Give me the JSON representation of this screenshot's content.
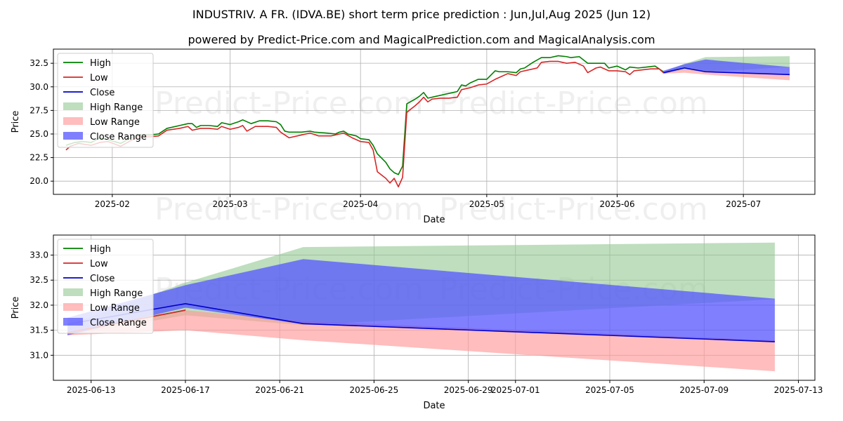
{
  "title_line1": "INDUSTRIV. A FR. (IDVA.BE) short term price prediction : Jun,Jul,Aug 2025 (Jun 12)",
  "title_line2": "powered by Predict-Price.com and MagicalPrediction.com and MagicalAnalysis.com",
  "watermark_text": "Predict-Price.com",
  "colors": {
    "high": "#008000",
    "low": "#d62728",
    "close": "#0000cc",
    "high_range": "#92c892",
    "low_range": "#ff9999",
    "close_range": "#5555ff"
  },
  "chart_data": [
    {
      "type": "line",
      "name": "history",
      "xlabel": "Date",
      "ylabel": "Price",
      "x_domain": [
        "2025-01-18",
        "2025-07-18"
      ],
      "ylim": [
        18.6,
        34.0
      ],
      "yticks": [
        20.0,
        22.5,
        25.0,
        27.5,
        30.0,
        32.5
      ],
      "ytick_labels": [
        "20.0",
        "22.5",
        "25.0",
        "27.5",
        "30.0",
        "32.5"
      ],
      "xticks": [
        "2025-02-01",
        "2025-03-01",
        "2025-04-01",
        "2025-05-01",
        "2025-06-01",
        "2025-07-01"
      ],
      "xtick_labels": [
        "2025-02",
        "2025-03",
        "2025-04",
        "2025-05",
        "2025-06",
        "2025-07"
      ],
      "legend": [
        "High",
        "Low",
        "Close",
        "High Range",
        "Low Range",
        "Close Range"
      ],
      "legend_position": "top-left",
      "series": [
        {
          "name": "High",
          "points": [
            [
              "2025-01-21",
              23.8
            ],
            [
              "2025-01-23",
              24.1
            ],
            [
              "2025-01-25",
              24.2
            ],
            [
              "2025-01-27",
              24.1
            ],
            [
              "2025-01-29",
              24.6
            ],
            [
              "2025-01-31",
              24.4
            ],
            [
              "2025-02-03",
              24.0
            ],
            [
              "2025-02-05",
              24.5
            ],
            [
              "2025-02-07",
              24.9
            ],
            [
              "2025-02-10",
              24.9
            ],
            [
              "2025-02-12",
              25.0
            ],
            [
              "2025-02-14",
              25.6
            ],
            [
              "2025-02-17",
              25.9
            ],
            [
              "2025-02-19",
              26.1
            ],
            [
              "2025-02-20",
              26.1
            ],
            [
              "2025-02-21",
              25.7
            ],
            [
              "2025-02-22",
              25.9
            ],
            [
              "2025-02-24",
              25.9
            ],
            [
              "2025-02-26",
              25.8
            ],
            [
              "2025-02-27",
              26.2
            ],
            [
              "2025-03-01",
              26.0
            ],
            [
              "2025-03-03",
              26.3
            ],
            [
              "2025-03-04",
              26.5
            ],
            [
              "2025-03-06",
              26.1
            ],
            [
              "2025-03-08",
              26.4
            ],
            [
              "2025-03-10",
              26.4
            ],
            [
              "2025-03-12",
              26.3
            ],
            [
              "2025-03-13",
              26.0
            ],
            [
              "2025-03-14",
              25.3
            ],
            [
              "2025-03-15",
              25.2
            ],
            [
              "2025-03-18",
              25.2
            ],
            [
              "2025-03-20",
              25.3
            ],
            [
              "2025-03-21",
              25.2
            ],
            [
              "2025-03-24",
              25.1
            ],
            [
              "2025-03-26",
              25.0
            ],
            [
              "2025-03-27",
              25.2
            ],
            [
              "2025-03-28",
              25.3
            ],
            [
              "2025-03-29",
              25.0
            ],
            [
              "2025-03-31",
              24.8
            ],
            [
              "2025-04-01",
              24.5
            ],
            [
              "2025-04-03",
              24.4
            ],
            [
              "2025-04-04",
              23.8
            ],
            [
              "2025-04-05",
              22.9
            ],
            [
              "2025-04-07",
              22.0
            ],
            [
              "2025-04-08",
              21.3
            ],
            [
              "2025-04-09",
              20.9
            ],
            [
              "2025-04-10",
              20.7
            ],
            [
              "2025-04-11",
              21.6
            ],
            [
              "2025-04-12",
              28.2
            ],
            [
              "2025-04-14",
              28.7
            ],
            [
              "2025-04-15",
              29.0
            ],
            [
              "2025-04-16",
              29.4
            ],
            [
              "2025-04-17",
              28.8
            ],
            [
              "2025-04-19",
              29.0
            ],
            [
              "2025-04-21",
              29.2
            ],
            [
              "2025-04-23",
              29.4
            ],
            [
              "2025-04-24",
              29.5
            ],
            [
              "2025-04-25",
              30.2
            ],
            [
              "2025-04-26",
              30.1
            ],
            [
              "2025-04-27",
              30.4
            ],
            [
              "2025-04-29",
              30.8
            ],
            [
              "2025-05-01",
              30.8
            ],
            [
              "2025-05-03",
              31.7
            ],
            [
              "2025-05-04",
              31.6
            ],
            [
              "2025-05-06",
              31.6
            ],
            [
              "2025-05-08",
              31.5
            ],
            [
              "2025-05-09",
              31.9
            ],
            [
              "2025-05-10",
              32.0
            ],
            [
              "2025-05-12",
              32.6
            ],
            [
              "2025-05-14",
              33.1
            ],
            [
              "2025-05-16",
              33.1
            ],
            [
              "2025-05-18",
              33.3
            ],
            [
              "2025-05-20",
              33.2
            ],
            [
              "2025-05-21",
              33.1
            ],
            [
              "2025-05-23",
              33.2
            ],
            [
              "2025-05-25",
              32.5
            ],
            [
              "2025-05-27",
              32.5
            ],
            [
              "2025-05-29",
              32.5
            ],
            [
              "2025-05-30",
              32.0
            ],
            [
              "2025-06-01",
              32.2
            ],
            [
              "2025-06-02",
              32.0
            ],
            [
              "2025-06-03",
              31.8
            ],
            [
              "2025-06-04",
              32.1
            ],
            [
              "2025-06-06",
              32.0
            ],
            [
              "2025-06-08",
              32.1
            ],
            [
              "2025-06-10",
              32.2
            ],
            [
              "2025-06-12",
              31.6
            ]
          ]
        },
        {
          "name": "Low",
          "points": [
            [
              "2025-01-21",
              23.3
            ],
            [
              "2025-01-22",
              23.7
            ],
            [
              "2025-01-24",
              24.0
            ],
            [
              "2025-01-27",
              23.8
            ],
            [
              "2025-01-29",
              24.1
            ],
            [
              "2025-01-31",
              24.2
            ],
            [
              "2025-02-03",
              23.7
            ],
            [
              "2025-02-05",
              24.2
            ],
            [
              "2025-02-07",
              24.7
            ],
            [
              "2025-02-10",
              24.7
            ],
            [
              "2025-02-12",
              24.8
            ],
            [
              "2025-02-14",
              25.4
            ],
            [
              "2025-02-17",
              25.6
            ],
            [
              "2025-02-19",
              25.8
            ],
            [
              "2025-02-20",
              25.4
            ],
            [
              "2025-02-22",
              25.6
            ],
            [
              "2025-02-24",
              25.6
            ],
            [
              "2025-02-26",
              25.5
            ],
            [
              "2025-02-27",
              25.8
            ],
            [
              "2025-03-01",
              25.5
            ],
            [
              "2025-03-03",
              25.7
            ],
            [
              "2025-03-04",
              25.9
            ],
            [
              "2025-03-05",
              25.3
            ],
            [
              "2025-03-07",
              25.8
            ],
            [
              "2025-03-10",
              25.8
            ],
            [
              "2025-03-12",
              25.7
            ],
            [
              "2025-03-13",
              25.2
            ],
            [
              "2025-03-15",
              24.6
            ],
            [
              "2025-03-18",
              24.9
            ],
            [
              "2025-03-20",
              25.1
            ],
            [
              "2025-03-22",
              24.8
            ],
            [
              "2025-03-25",
              24.8
            ],
            [
              "2025-03-27",
              25.0
            ],
            [
              "2025-03-28",
              25.1
            ],
            [
              "2025-03-30",
              24.6
            ],
            [
              "2025-04-01",
              24.2
            ],
            [
              "2025-04-03",
              24.1
            ],
            [
              "2025-04-04",
              23.3
            ],
            [
              "2025-04-05",
              21.0
            ],
            [
              "2025-04-07",
              20.3
            ],
            [
              "2025-04-08",
              19.8
            ],
            [
              "2025-04-09",
              20.3
            ],
            [
              "2025-04-10",
              19.4
            ],
            [
              "2025-04-11",
              20.4
            ],
            [
              "2025-04-12",
              27.3
            ],
            [
              "2025-04-14",
              28.0
            ],
            [
              "2025-04-15",
              28.4
            ],
            [
              "2025-04-16",
              28.9
            ],
            [
              "2025-04-17",
              28.4
            ],
            [
              "2025-04-18",
              28.7
            ],
            [
              "2025-04-20",
              28.8
            ],
            [
              "2025-04-22",
              28.8
            ],
            [
              "2025-04-24",
              28.9
            ],
            [
              "2025-04-25",
              29.7
            ],
            [
              "2025-04-27",
              29.9
            ],
            [
              "2025-04-29",
              30.2
            ],
            [
              "2025-05-01",
              30.3
            ],
            [
              "2025-05-03",
              30.8
            ],
            [
              "2025-05-05",
              31.2
            ],
            [
              "2025-05-06",
              31.4
            ],
            [
              "2025-05-08",
              31.2
            ],
            [
              "2025-05-09",
              31.6
            ],
            [
              "2025-05-11",
              31.8
            ],
            [
              "2025-05-13",
              32.0
            ],
            [
              "2025-05-14",
              32.6
            ],
            [
              "2025-05-16",
              32.7
            ],
            [
              "2025-05-18",
              32.7
            ],
            [
              "2025-05-20",
              32.5
            ],
            [
              "2025-05-22",
              32.6
            ],
            [
              "2025-05-24",
              32.2
            ],
            [
              "2025-05-25",
              31.5
            ],
            [
              "2025-05-27",
              32.0
            ],
            [
              "2025-05-28",
              32.1
            ],
            [
              "2025-05-30",
              31.7
            ],
            [
              "2025-06-01",
              31.7
            ],
            [
              "2025-06-03",
              31.6
            ],
            [
              "2025-06-04",
              31.3
            ],
            [
              "2025-06-05",
              31.7
            ],
            [
              "2025-06-07",
              31.8
            ],
            [
              "2025-06-09",
              31.9
            ],
            [
              "2025-06-11",
              31.9
            ],
            [
              "2025-06-12",
              31.5
            ]
          ]
        },
        {
          "name": "Close",
          "points": [
            [
              "2025-06-12",
              31.5
            ],
            [
              "2025-06-17",
              32.0
            ],
            [
              "2025-06-22",
              31.6
            ],
            [
              "2025-07-12",
              31.3
            ]
          ]
        }
      ],
      "ranges": [
        {
          "name": "High Range",
          "points": [
            [
              "2025-06-12",
              31.6,
              31.4
            ],
            [
              "2025-06-17",
              32.45,
              31.8
            ],
            [
              "2025-06-22",
              33.15,
              31.6
            ],
            [
              "2025-07-12",
              33.25,
              32.1
            ]
          ]
        },
        {
          "name": "Low Range",
          "points": [
            [
              "2025-06-12",
              31.55,
              31.4
            ],
            [
              "2025-06-17",
              31.85,
              31.5
            ],
            [
              "2025-06-22",
              31.65,
              31.3
            ],
            [
              "2025-07-12",
              31.3,
              30.7
            ]
          ]
        },
        {
          "name": "Close Range",
          "points": [
            [
              "2025-06-12",
              31.7,
              31.4
            ],
            [
              "2025-06-17",
              32.4,
              31.95
            ],
            [
              "2025-06-22",
              32.9,
              31.6
            ],
            [
              "2025-07-12",
              32.1,
              31.25
            ]
          ]
        }
      ]
    },
    {
      "type": "line",
      "name": "forecast",
      "xlabel": "Date",
      "ylabel": "Price",
      "x_domain": [
        "2025-06-11.4",
        "2025-07-13.7"
      ],
      "ylim": [
        30.5,
        33.4
      ],
      "yticks": [
        31.0,
        31.5,
        32.0,
        32.5,
        33.0
      ],
      "ytick_labels": [
        "31.0",
        "31.5",
        "32.0",
        "32.5",
        "33.0"
      ],
      "xticks": [
        "2025-06-13",
        "2025-06-17",
        "2025-06-21",
        "2025-06-25",
        "2025-06-29",
        "2025-07-01",
        "2025-07-05",
        "2025-07-09",
        "2025-07-13"
      ],
      "xtick_labels": [
        "2025-06-13",
        "2025-06-17",
        "2025-06-21",
        "2025-06-25",
        "2025-06-29",
        "2025-07-01",
        "2025-07-05",
        "2025-07-09",
        "2025-07-13"
      ],
      "legend": [
        "High",
        "Low",
        "Close",
        "High Range",
        "Low Range",
        "Close Range"
      ],
      "legend_position": "top-left",
      "series": [
        {
          "name": "High",
          "points": [
            [
              "2025-06-12",
              31.45
            ],
            [
              "2025-06-17",
              31.9
            ]
          ]
        },
        {
          "name": "Low",
          "points": [
            [
              "2025-06-12",
              31.45
            ],
            [
              "2025-06-17",
              31.9
            ]
          ]
        },
        {
          "name": "Close",
          "points": [
            [
              "2025-06-12",
              31.62
            ],
            [
              "2025-06-17",
              32.03
            ],
            [
              "2025-06-22",
              31.63
            ],
            [
              "2025-07-12",
              31.27
            ]
          ]
        }
      ],
      "ranges": [
        {
          "name": "High Range",
          "points": [
            [
              "2025-06-12",
              31.6,
              31.4
            ],
            [
              "2025-06-17",
              32.45,
              31.8
            ],
            [
              "2025-06-22",
              33.16,
              31.6
            ],
            [
              "2025-07-12",
              33.25,
              32.12
            ]
          ]
        },
        {
          "name": "Low Range",
          "points": [
            [
              "2025-06-12",
              31.55,
              31.4
            ],
            [
              "2025-06-17",
              31.9,
              31.5
            ],
            [
              "2025-06-22",
              31.68,
              31.3
            ],
            [
              "2025-07-12",
              31.3,
              30.68
            ]
          ]
        },
        {
          "name": "Close Range",
          "points": [
            [
              "2025-06-12",
              31.75,
              31.4
            ],
            [
              "2025-06-17",
              32.4,
              31.95
            ],
            [
              "2025-06-22",
              32.92,
              31.62
            ],
            [
              "2025-07-12",
              32.13,
              31.27
            ]
          ]
        }
      ]
    }
  ]
}
